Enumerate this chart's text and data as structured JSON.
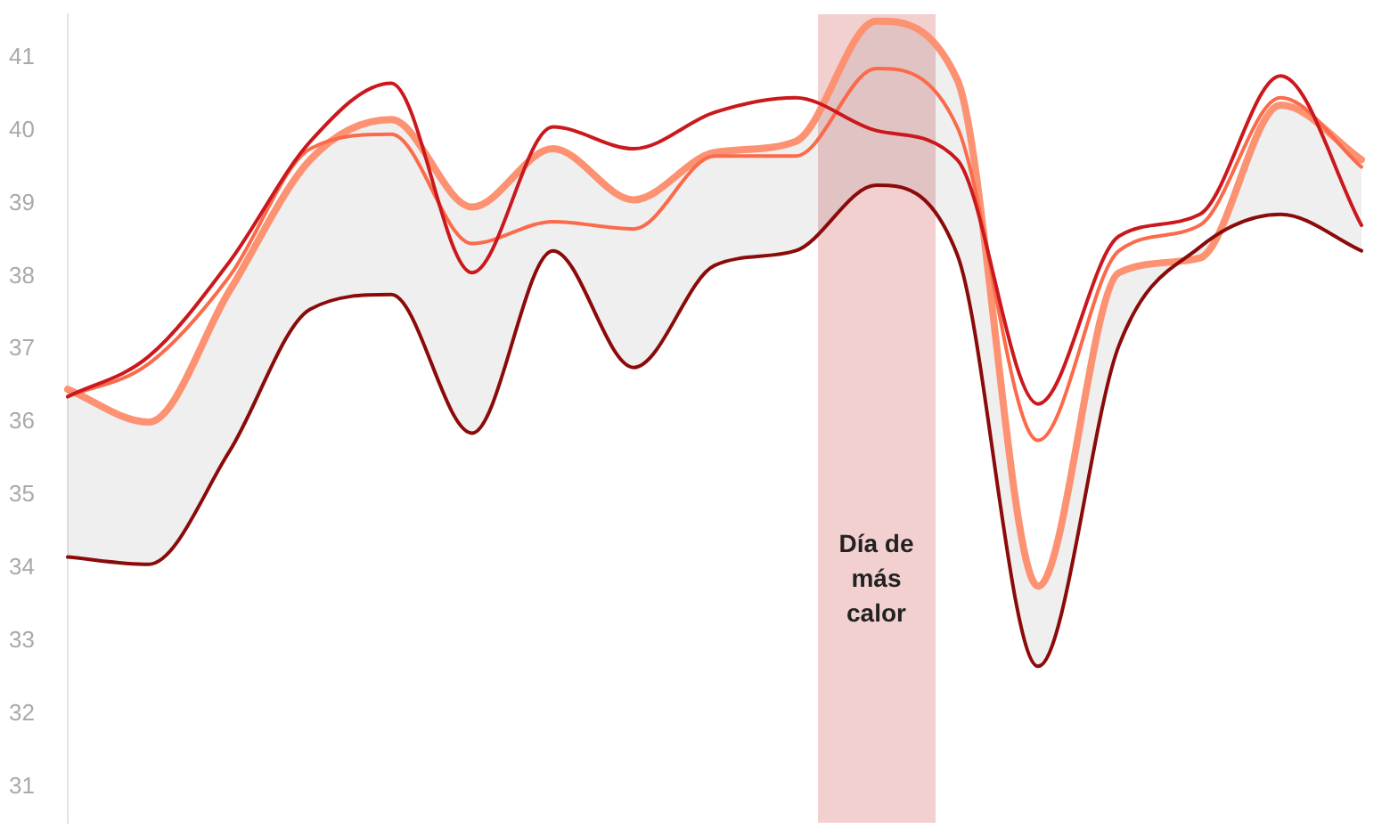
{
  "chart_data": {
    "type": "line",
    "categories": [
      null,
      null,
      null,
      null,
      null,
      null,
      null,
      null,
      null,
      null,
      null,
      null,
      null,
      null,
      null,
      null,
      null
    ],
    "series": [
      {
        "color": "#fc9272",
        "values": [
          36.45,
          36.0,
          37.8,
          39.6,
          40.15,
          38.95,
          39.75,
          39.05,
          39.7,
          39.85,
          41.5,
          40.7,
          33.75,
          38.05,
          38.25,
          40.35,
          39.6
        ],
        "lower": [
          34.15,
          34.05,
          35.6,
          37.55,
          37.75,
          35.85,
          38.35,
          36.75,
          38.15,
          38.35,
          39.25,
          38.3,
          32.65,
          37.05,
          38.4,
          38.85,
          38.35
        ],
        "upper": [
          36.45,
          36.0,
          37.8,
          39.6,
          40.15,
          38.95,
          39.75,
          39.05,
          39.7,
          39.85,
          41.5,
          40.7,
          33.75,
          38.05,
          38.25,
          40.35,
          39.6
        ]
      },
      {
        "color": "#fb6a4a",
        "values": [
          36.35,
          36.8,
          38.0,
          39.75,
          39.95,
          38.45,
          38.75,
          38.65,
          39.65,
          39.65,
          40.85,
          40.05,
          35.75,
          38.35,
          38.7,
          40.45,
          39.5
        ]
      },
      {
        "color": "#cb181d",
        "values": [
          36.35,
          36.9,
          38.2,
          39.85,
          40.65,
          38.05,
          40.05,
          39.75,
          40.25,
          40.45,
          40.0,
          39.6,
          36.25,
          38.55,
          38.85,
          40.75,
          38.7
        ]
      },
      {
        "color": "#8b0a0a",
        "values": [
          34.15,
          34.05,
          35.6,
          37.55,
          37.75,
          35.85,
          38.35,
          36.75,
          38.15,
          38.35,
          39.25,
          38.3,
          32.65,
          37.05,
          38.4,
          38.85,
          38.35
        ]
      }
    ],
    "ylim": [
      30.5,
      41.6
    ],
    "yticks": [
      31,
      32,
      33,
      34,
      35,
      36,
      37,
      38,
      39,
      40,
      41
    ],
    "annotations": [
      "Día de más calor"
    ],
    "tick_labels": "y",
    "marker": "none",
    "line_style": "solid"
  }
}
